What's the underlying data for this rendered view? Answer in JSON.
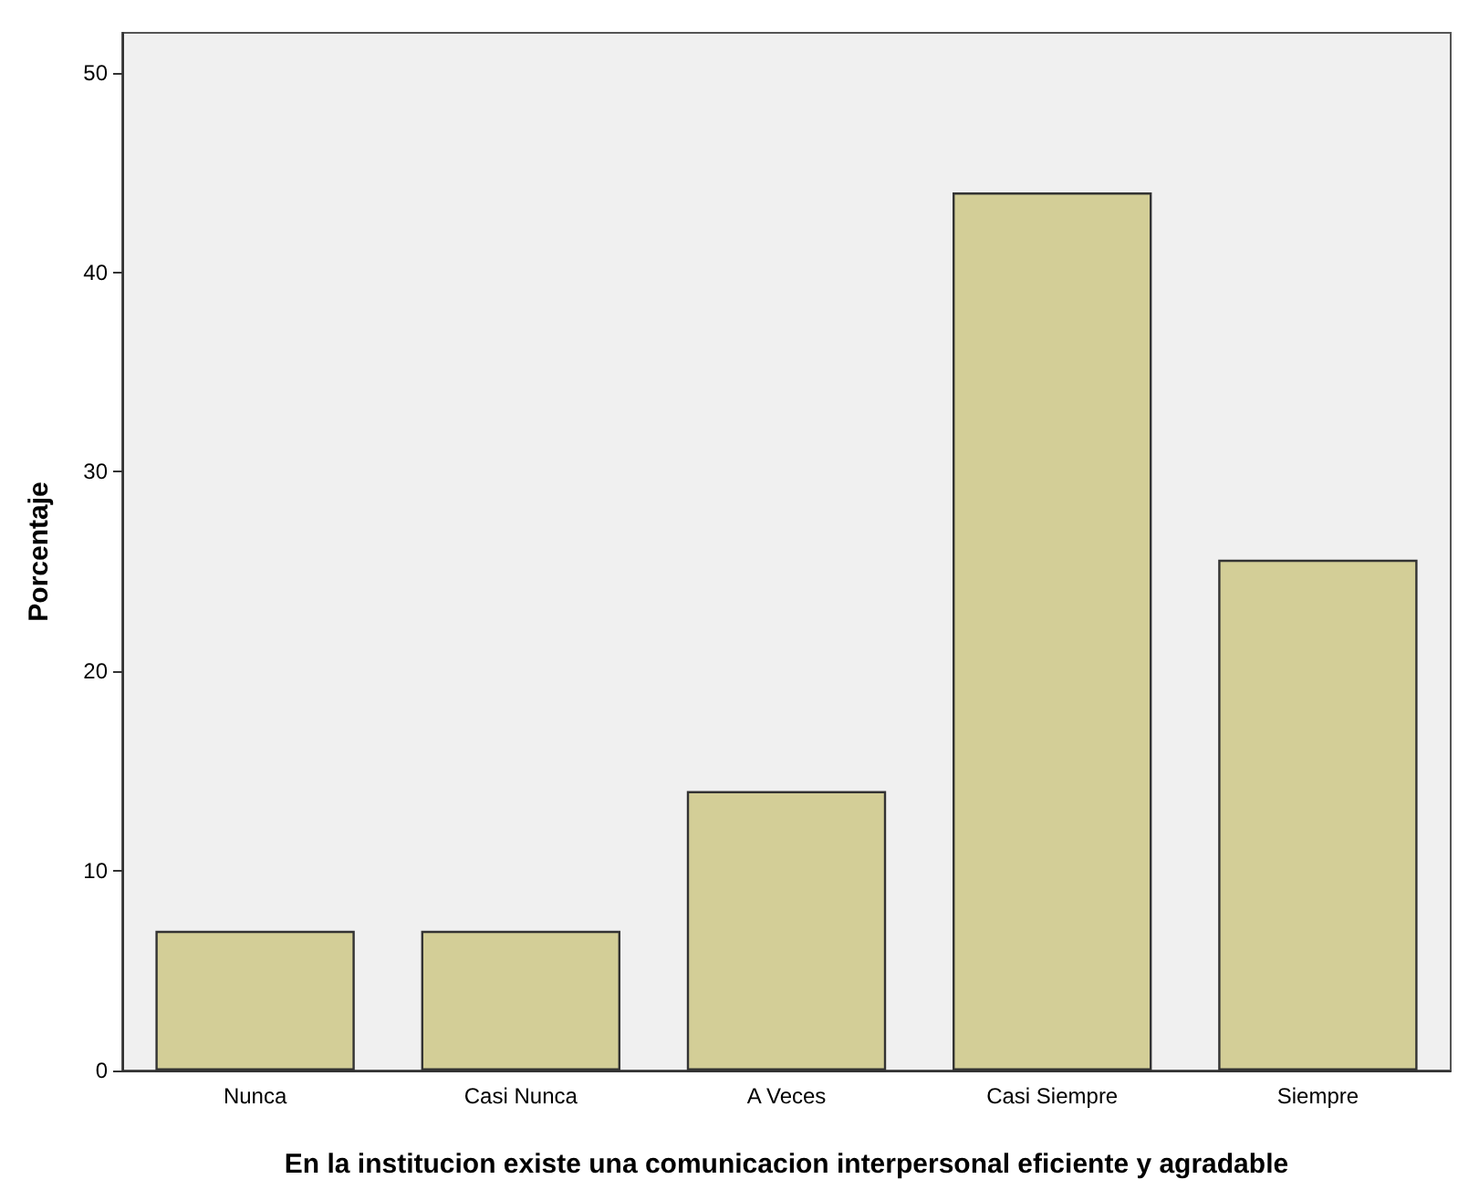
{
  "chart_data": {
    "type": "bar",
    "xlabel": "En la institucion existe una comunicacion interpersonal eficiente y agradable",
    "ylabel": "Porcentaje",
    "categories": [
      "Nunca",
      "Casi Nunca",
      "A Veces",
      "Casi Siempre",
      "Siempre"
    ],
    "values": [
      7,
      7,
      14,
      44,
      25.6
    ],
    "color": "#d3ce97",
    "ylim": [
      0,
      52
    ],
    "yticks": [
      0,
      10,
      20,
      30,
      40,
      50
    ],
    "grid": false
  }
}
